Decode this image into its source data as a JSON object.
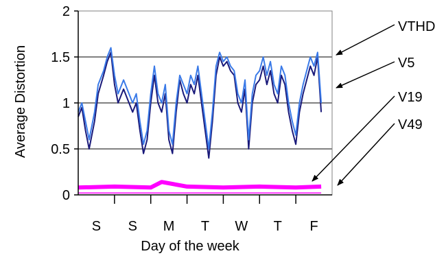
{
  "chart_data": {
    "type": "line",
    "xlabel": "Day of the week",
    "ylabel": "Average Distortion",
    "ylim": [
      0,
      2
    ],
    "yticks": [
      "0",
      "0.5",
      "1",
      "1.5",
      "2"
    ],
    "categories": [
      "S",
      "S",
      "M",
      "T",
      "W",
      "T",
      "F"
    ],
    "grid": true,
    "colors": {
      "VTHD": "#1a1a7a",
      "V5": "#3a7ae8",
      "V19": "#ff00ff",
      "V49": "#ff00ff",
      "grid": "#000000",
      "frame": "#808080"
    },
    "annotations": [
      {
        "label": "VTHD",
        "series": "VTHD"
      },
      {
        "label": "V5",
        "series": "V5"
      },
      {
        "label": "V19",
        "series": "V19"
      },
      {
        "label": "V49",
        "series": "V49"
      }
    ],
    "series": [
      {
        "name": "VTHD",
        "x": [
          0,
          0.1,
          0.2,
          0.3,
          0.45,
          0.55,
          0.7,
          0.8,
          0.9,
          1.0,
          1.1,
          1.25,
          1.4,
          1.5,
          1.6,
          1.7,
          1.8,
          1.9,
          2.0,
          2.1,
          2.2,
          2.3,
          2.4,
          2.5,
          2.6,
          2.7,
          2.8,
          2.9,
          3.0,
          3.1,
          3.2,
          3.3,
          3.4,
          3.5,
          3.6,
          3.7,
          3.8,
          3.9,
          4.0,
          4.1,
          4.2,
          4.3,
          4.4,
          4.5,
          4.6,
          4.7,
          4.8,
          4.9,
          5.0,
          5.1,
          5.2,
          5.3,
          5.4,
          5.5,
          5.6,
          5.7,
          5.8,
          5.9,
          6.0,
          6.1,
          6.2,
          6.3,
          6.4,
          6.5,
          6.6,
          6.7
        ],
        "y": [
          0.85,
          0.95,
          0.7,
          0.5,
          0.8,
          1.1,
          1.3,
          1.45,
          1.55,
          1.2,
          1.0,
          1.15,
          1.0,
          0.9,
          1.0,
          0.7,
          0.45,
          0.6,
          1.0,
          1.3,
          1.0,
          0.9,
          1.1,
          0.6,
          0.45,
          0.9,
          1.25,
          1.1,
          1.0,
          1.2,
          1.1,
          1.3,
          1.0,
          0.7,
          0.4,
          0.8,
          1.3,
          1.5,
          1.4,
          1.45,
          1.35,
          1.3,
          1.0,
          0.9,
          1.15,
          0.5,
          1.0,
          1.2,
          1.25,
          1.4,
          1.2,
          1.35,
          1.1,
          1.0,
          1.3,
          1.2,
          0.9,
          0.7,
          0.55,
          0.9,
          1.1,
          1.25,
          1.4,
          1.3,
          1.5,
          0.9
        ]
      },
      {
        "name": "V5",
        "x": [
          0,
          0.1,
          0.2,
          0.3,
          0.45,
          0.55,
          0.7,
          0.8,
          0.9,
          1.0,
          1.1,
          1.25,
          1.4,
          1.5,
          1.6,
          1.7,
          1.8,
          1.9,
          2.0,
          2.1,
          2.2,
          2.3,
          2.4,
          2.5,
          2.6,
          2.7,
          2.8,
          2.9,
          3.0,
          3.1,
          3.2,
          3.3,
          3.4,
          3.5,
          3.6,
          3.7,
          3.8,
          3.9,
          4.0,
          4.1,
          4.2,
          4.3,
          4.4,
          4.5,
          4.6,
          4.7,
          4.8,
          4.9,
          5.0,
          5.1,
          5.2,
          5.3,
          5.4,
          5.5,
          5.6,
          5.7,
          5.8,
          5.9,
          6.0,
          6.1,
          6.2,
          6.3,
          6.4,
          6.5,
          6.6,
          6.7
        ],
        "y": [
          0.9,
          1.0,
          0.8,
          0.6,
          0.9,
          1.2,
          1.35,
          1.5,
          1.6,
          1.3,
          1.1,
          1.25,
          1.1,
          1.0,
          1.1,
          0.8,
          0.55,
          0.7,
          1.1,
          1.4,
          1.1,
          1.0,
          1.2,
          0.7,
          0.55,
          1.0,
          1.3,
          1.2,
          1.1,
          1.3,
          1.2,
          1.4,
          1.1,
          0.8,
          0.5,
          0.9,
          1.4,
          1.55,
          1.45,
          1.5,
          1.4,
          1.35,
          1.1,
          1.0,
          1.25,
          0.6,
          1.1,
          1.3,
          1.35,
          1.5,
          1.3,
          1.45,
          1.2,
          1.1,
          1.4,
          1.3,
          1.0,
          0.8,
          0.65,
          1.0,
          1.2,
          1.35,
          1.5,
          1.4,
          1.55,
          1.0
        ]
      },
      {
        "name": "V19",
        "x": [
          0,
          1,
          2,
          2.3,
          3,
          4,
          5,
          6,
          6.7
        ],
        "y": [
          0.08,
          0.09,
          0.08,
          0.14,
          0.09,
          0.08,
          0.09,
          0.08,
          0.09
        ]
      },
      {
        "name": "V49",
        "x": [
          0,
          6.7
        ],
        "y": [
          0.02,
          0.02
        ]
      }
    ]
  }
}
